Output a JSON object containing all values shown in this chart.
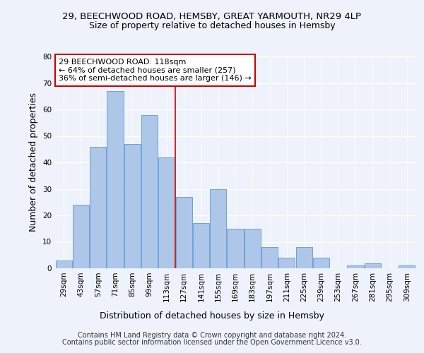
{
  "title_line1": "29, BEECHWOOD ROAD, HEMSBY, GREAT YARMOUTH, NR29 4LP",
  "title_line2": "Size of property relative to detached houses in Hemsby",
  "xlabel": "Distribution of detached houses by size in Hemsby",
  "ylabel": "Number of detached properties",
  "categories": [
    "29sqm",
    "43sqm",
    "57sqm",
    "71sqm",
    "85sqm",
    "99sqm",
    "113sqm",
    "127sqm",
    "141sqm",
    "155sqm",
    "169sqm",
    "183sqm",
    "197sqm",
    "211sqm",
    "225sqm",
    "239sqm",
    "253sqm",
    "267sqm",
    "281sqm",
    "295sqm",
    "309sqm"
  ],
  "values": [
    3,
    24,
    46,
    67,
    47,
    58,
    42,
    27,
    17,
    30,
    15,
    15,
    8,
    4,
    8,
    4,
    0,
    1,
    2,
    0,
    1
  ],
  "bar_color": "#aec6e8",
  "bar_edge_color": "#5b9bd5",
  "red_line_x": 6.5,
  "red_line_color": "#cc0000",
  "annotation_title": "29 BEECHWOOD ROAD: 118sqm",
  "annotation_line2": "← 64% of detached houses are smaller (257)",
  "annotation_line3": "36% of semi-detached houses are larger (146) →",
  "annotation_box_color": "#ffffff",
  "annotation_box_edge": "#cc0000",
  "ylim": [
    0,
    80
  ],
  "yticks": [
    0,
    10,
    20,
    30,
    40,
    50,
    60,
    70,
    80
  ],
  "background_color": "#eef2fb",
  "grid_color": "#ffffff",
  "footer_line1": "Contains HM Land Registry data © Crown copyright and database right 2024.",
  "footer_line2": "Contains public sector information licensed under the Open Government Licence v3.0.",
  "title_fontsize": 9.5,
  "subtitle_fontsize": 9,
  "axis_label_fontsize": 9,
  "tick_fontsize": 7.5,
  "annotation_fontsize": 8,
  "footer_fontsize": 7
}
